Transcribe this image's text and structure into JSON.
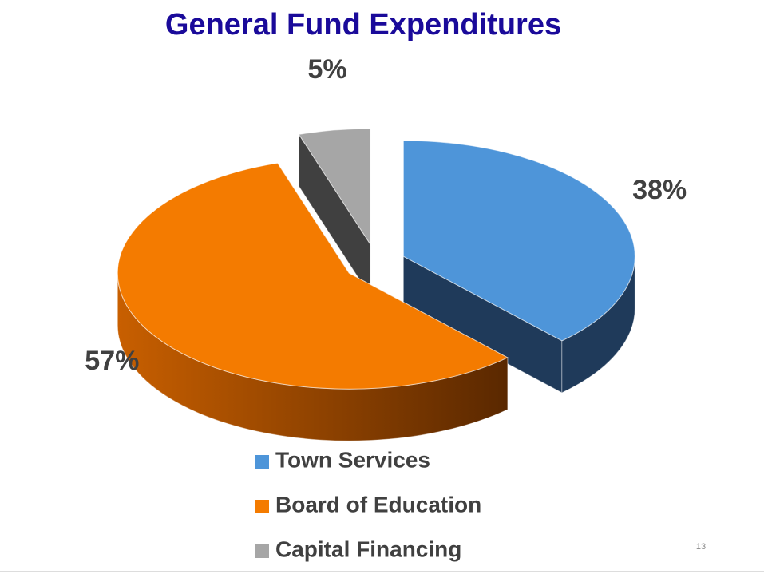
{
  "chart_data": {
    "type": "pie",
    "title": "General Fund Expenditures",
    "categories": [
      "Town Services",
      "Board of Education",
      "Capital Financing"
    ],
    "values": [
      38,
      57,
      5
    ],
    "value_labels": [
      "38%",
      "57%",
      "5%"
    ],
    "colors": [
      "#4E95D9",
      "#F47B00",
      "#A6A6A6"
    ],
    "legend": "bottom"
  },
  "slide_number": "13"
}
